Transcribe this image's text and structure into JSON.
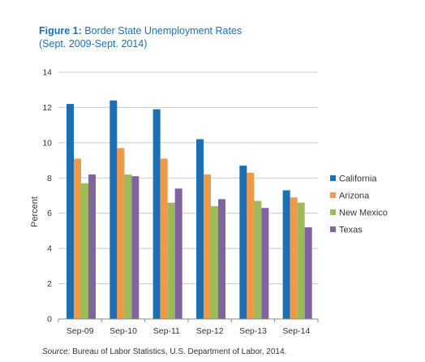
{
  "figure": {
    "label": "Figure 1:",
    "title": "Border State Unemployment Rates",
    "subtitle": "(Sept. 2009-Sept. 2014)"
  },
  "source": {
    "label": "Source:",
    "text": "Bureau of Labor Statistics, U.S. Department of Labor, 2014."
  },
  "chart_data": {
    "type": "bar",
    "title": "Border State Unemployment Rates",
    "xlabel": "",
    "ylabel": "Percent",
    "ylim": [
      0,
      14
    ],
    "yticks": [
      0,
      2,
      4,
      6,
      8,
      10,
      12,
      14
    ],
    "grid": true,
    "legend_position": "right",
    "categories": [
      "Sep-09",
      "Sep-10",
      "Sep-11",
      "Sep-12",
      "Sep-13",
      "Sep-14"
    ],
    "series": [
      {
        "name": "California",
        "color": "#1a6fb5",
        "values": [
          12.2,
          12.4,
          11.9,
          10.2,
          8.7,
          7.3
        ]
      },
      {
        "name": "Arizona",
        "color": "#ee9a49",
        "values": [
          9.1,
          9.7,
          9.1,
          8.2,
          8.3,
          6.9
        ]
      },
      {
        "name": "New Mexico",
        "color": "#9bbb59",
        "values": [
          7.7,
          8.2,
          6.6,
          6.4,
          6.7,
          6.6
        ]
      },
      {
        "name": "Texas",
        "color": "#8064a2",
        "values": [
          8.2,
          8.1,
          7.4,
          6.8,
          6.3,
          5.2
        ]
      }
    ]
  }
}
